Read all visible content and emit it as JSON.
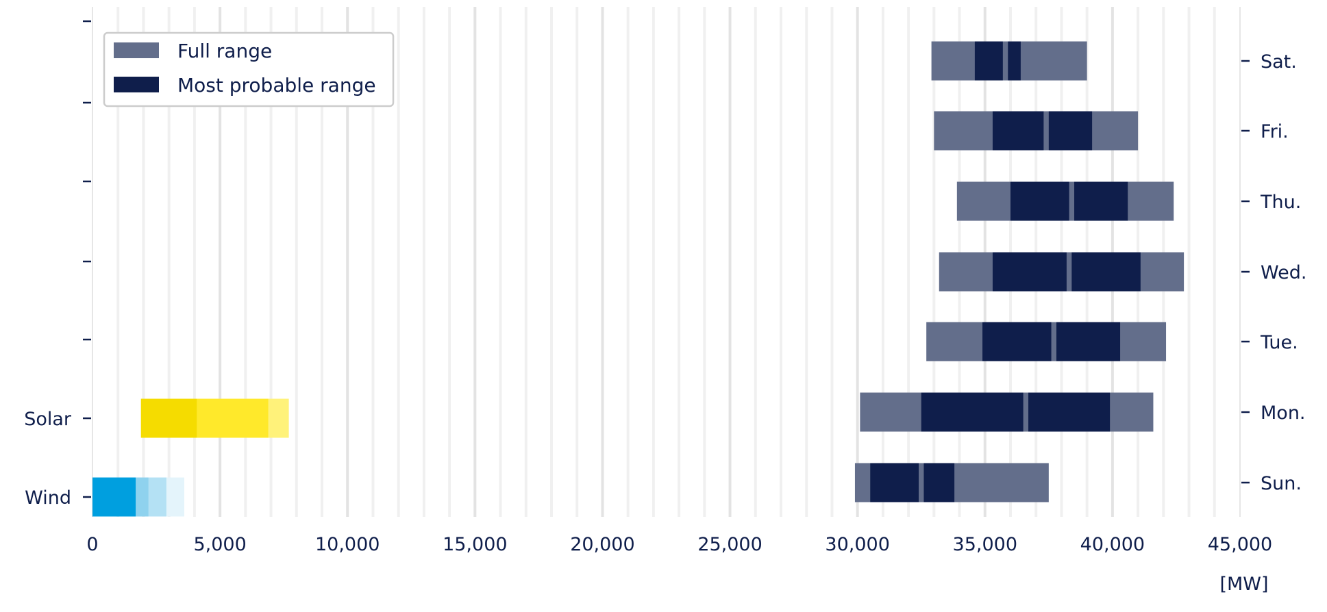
{
  "chart_data": {
    "type": "bar",
    "orientation": "horizontal",
    "unit_label": "[MW]",
    "xlim": [
      0,
      45000
    ],
    "x_ticks": [
      0,
      5000,
      10000,
      15000,
      20000,
      25000,
      30000,
      35000,
      40000,
      45000
    ],
    "x_tick_labels": [
      "0",
      "5,000",
      "10,000",
      "15,000",
      "20,000",
      "25,000",
      "30,000",
      "35,000",
      "40,000",
      "45,000"
    ],
    "grid": "vertical",
    "legend": {
      "placement": "top-left",
      "entries": [
        {
          "label": "Full range",
          "color": "#636e8b"
        },
        {
          "label": "Most probable range",
          "color": "#0f1e4b"
        }
      ]
    },
    "left_rows": [
      "Wind",
      "Solar",
      "",
      "",
      "",
      "",
      ""
    ],
    "right_rows": [
      "Sun.",
      "Mon.",
      "Tue.",
      "Wed.",
      "Thu.",
      "Fri.",
      "Sat."
    ],
    "days": [
      {
        "day": "Sun.",
        "full_range": [
          29900,
          37500
        ],
        "probable_ranges": [
          [
            30500,
            32400
          ],
          [
            32600,
            33800
          ]
        ]
      },
      {
        "day": "Mon.",
        "full_range": [
          30100,
          41600
        ],
        "probable_ranges": [
          [
            32500,
            36500
          ],
          [
            36700,
            39900
          ]
        ]
      },
      {
        "day": "Tue.",
        "full_range": [
          32700,
          42100
        ],
        "probable_ranges": [
          [
            34900,
            37600
          ],
          [
            37800,
            40300
          ]
        ]
      },
      {
        "day": "Wed.",
        "full_range": [
          33200,
          42800
        ],
        "probable_ranges": [
          [
            35300,
            38200
          ],
          [
            38400,
            41100
          ]
        ]
      },
      {
        "day": "Thu.",
        "full_range": [
          33900,
          42400
        ],
        "probable_ranges": [
          [
            36000,
            38300
          ],
          [
            38500,
            40600
          ]
        ]
      },
      {
        "day": "Fri.",
        "full_range": [
          33000,
          41000
        ],
        "probable_ranges": [
          [
            35300,
            37300
          ],
          [
            37500,
            39200
          ]
        ]
      },
      {
        "day": "Sat.",
        "full_range": [
          32900,
          39000
        ],
        "probable_ranges": [
          [
            34600,
            35700
          ],
          [
            35900,
            36400
          ]
        ]
      }
    ],
    "renewables": [
      {
        "name": "Wind",
        "segments": [
          {
            "from": 0,
            "to": 1700,
            "color": "#009fdf"
          },
          {
            "from": 1700,
            "to": 2200,
            "color": "#8fd2ee"
          },
          {
            "from": 2200,
            "to": 2900,
            "color": "#b4e1f4"
          },
          {
            "from": 2900,
            "to": 3600,
            "color": "#e4f4fb"
          }
        ]
      },
      {
        "name": "Solar",
        "segments": [
          {
            "from": 1900,
            "to": 4100,
            "color": "#f5dc00"
          },
          {
            "from": 4100,
            "to": 6900,
            "color": "#ffe92b"
          },
          {
            "from": 6900,
            "to": 7700,
            "color": "#fff27a"
          }
        ]
      }
    ]
  }
}
